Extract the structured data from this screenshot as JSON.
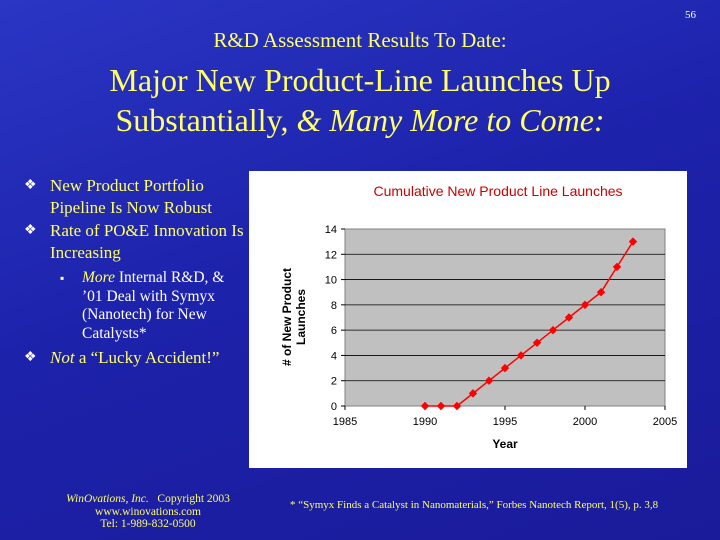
{
  "page_number": "56",
  "subtitle": "R&D Assessment Results To Date:",
  "title": {
    "line1": "Major New Product-Line Launches Up",
    "line2_plain": "Substantially, ",
    "line2_italic": "& Many More to Come:"
  },
  "bullets": {
    "b1": "New Product Portfolio Pipeline Is Now Robust",
    "b2": "Rate of PO&E Innovation Is Increasing",
    "sub_italic": "More",
    "sub_rest": " Internal R&D, & ’01 Deal with Symyx (Nanotech) for New Catalysts*",
    "b3_italic": "Not",
    "b3_rest": " a “Lucky Accident!”",
    "bullet_icon": "diamond-flower-bullet-icon",
    "sub_icon": "small-square-bullet-icon"
  },
  "footer": {
    "company": "WinOvations, Inc.",
    "copyright": "Copyright 2003",
    "website": "www.winovations.com",
    "tel": "Tel:  1-989-832-0500",
    "citation": "* “Symyx Finds a Catalyst in Nanomaterials,” Forbes Nanotech Report, 1(5), p. 3,8"
  },
  "colors": {
    "background": "#1d22ab",
    "text_yellow": "#ffff66",
    "chart_title": "#cc0000",
    "plot_area": "#c0c0c0",
    "series": "#ff0000"
  },
  "chart_data": {
    "type": "line",
    "title": "Cumulative New Product Line Launches",
    "xlabel": "Year",
    "ylabel": "# of New Product Launches",
    "xlim": [
      1985,
      2005
    ],
    "ylim": [
      0,
      14
    ],
    "xticks": [
      "1985",
      "1990",
      "1995",
      "2000",
      "2005"
    ],
    "yticks": [
      "0",
      "2",
      "4",
      "6",
      "8",
      "10",
      "12",
      "14"
    ],
    "grid": "horizontal",
    "legend": "none",
    "series": [
      {
        "x": [
          1990,
          1991,
          1992,
          1993,
          1994,
          1995,
          1996,
          1997,
          1998,
          1999,
          2000,
          2001,
          2002,
          2003
        ],
        "y": [
          0,
          0,
          0,
          1,
          2,
          3,
          4,
          5,
          6,
          7,
          8,
          9,
          11,
          13
        ]
      }
    ]
  }
}
